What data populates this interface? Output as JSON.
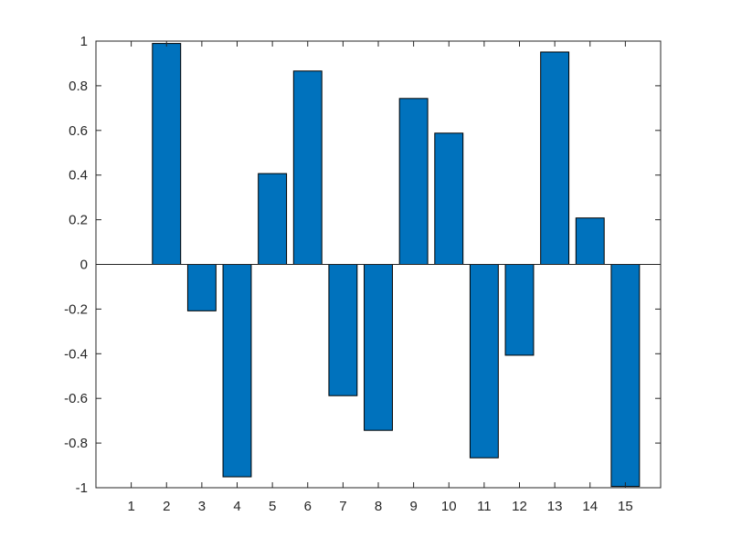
{
  "chart_data": {
    "type": "bar",
    "title": "",
    "xlabel": "",
    "ylabel": "",
    "categories": [
      "1",
      "2",
      "3",
      "4",
      "5",
      "6",
      "7",
      "8",
      "9",
      "10",
      "11",
      "12",
      "13",
      "14",
      "15"
    ],
    "values": [
      0,
      0.9894,
      -0.2079,
      -0.9511,
      0.4067,
      0.866,
      -0.5878,
      -0.7431,
      0.7431,
      0.5878,
      -0.866,
      -0.4067,
      0.9511,
      0.2079,
      -0.9945
    ],
    "ylim": [
      -1,
      1
    ],
    "yticks": [
      -1,
      -0.8,
      -0.6,
      -0.4,
      -0.2,
      0,
      0.2,
      0.4,
      0.6,
      0.8,
      1
    ],
    "ytick_labels": [
      "-1",
      "-0.8",
      "-0.6",
      "-0.4",
      "-0.2",
      "0",
      "0.2",
      "0.4",
      "0.6",
      "0.8",
      "1"
    ],
    "grid": false,
    "bar_color": "#0072BD",
    "axis_color": "#262626"
  }
}
